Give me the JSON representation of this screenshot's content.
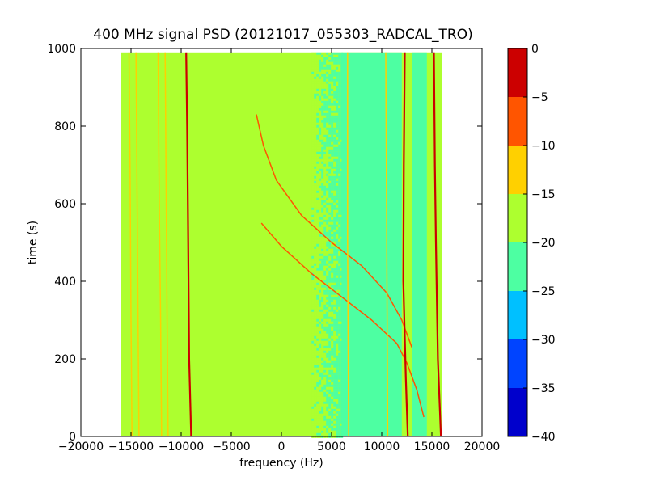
{
  "chart_data": {
    "type": "heatmap",
    "title": "400 MHz signal PSD (20121017_055303_RADCAL_TRO)",
    "xlabel": "frequency (Hz)",
    "ylabel": "time (s)",
    "xlim": [
      -20000,
      20000
    ],
    "ylim": [
      0,
      1000
    ],
    "x_ticks": [
      "−20000",
      "−15000",
      "−10000",
      "−5000",
      "0",
      "5000",
      "10000",
      "15000",
      "20000"
    ],
    "x_tick_values": [
      -20000,
      -15000,
      -10000,
      -5000,
      0,
      5000,
      10000,
      15000,
      20000
    ],
    "y_ticks": [
      "0",
      "200",
      "400",
      "600",
      "800",
      "1000"
    ],
    "y_tick_values": [
      0,
      200,
      400,
      600,
      800,
      1000
    ],
    "data_extent": {
      "x": [
        -16000,
        16000
      ],
      "y": [
        0,
        990
      ]
    },
    "background_level": -17.5,
    "regions": [
      {
        "x": [
          3000,
          6000
        ],
        "y": [
          0,
          990
        ],
        "level": "mixed -17.5/-22.5"
      },
      {
        "x": [
          6000,
          12000
        ],
        "y": [
          0,
          990
        ],
        "level": -22.5
      },
      {
        "x": [
          13000,
          14500
        ],
        "y": [
          0,
          990
        ],
        "level": -22.5
      }
    ],
    "series": [
      {
        "x": [
          -15200,
          -15100,
          -15000,
          -14900
        ],
        "y": [
          990,
          700,
          300,
          0
        ],
        "level": -12.5
      },
      {
        "x": [
          -14500,
          -14400,
          -14300,
          -14200
        ],
        "y": [
          990,
          650,
          300,
          0
        ],
        "level": -12.5
      },
      {
        "x": [
          -12300,
          -12200,
          -12050,
          -11950
        ],
        "y": [
          990,
          650,
          300,
          0
        ],
        "level": -12.5
      },
      {
        "x": [
          -11600,
          -11500,
          -11400,
          -11300
        ],
        "y": [
          990,
          650,
          300,
          0
        ],
        "level": -12.5
      },
      {
        "x": [
          -9500,
          -9400,
          -9300,
          -9200,
          -9000
        ],
        "y": [
          990,
          800,
          500,
          200,
          0
        ],
        "level": -2.5
      },
      {
        "x": [
          -2500,
          -1800,
          -500,
          2000,
          5000,
          8000,
          10500,
          12000,
          13000
        ],
        "y": [
          830,
          750,
          660,
          570,
          500,
          440,
          370,
          300,
          230
        ],
        "level": -7.5
      },
      {
        "x": [
          -2000,
          0,
          3000,
          6000,
          9000,
          11500,
          12500,
          13500,
          14200
        ],
        "y": [
          550,
          490,
          420,
          360,
          300,
          240,
          190,
          120,
          50
        ],
        "level": -7.5
      },
      {
        "x": [
          12300,
          12200,
          12150,
          12400,
          12600
        ],
        "y": [
          990,
          700,
          400,
          150,
          0
        ],
        "level": -2.5
      },
      {
        "x": [
          15200,
          15300,
          15400,
          15600,
          15900
        ],
        "y": [
          990,
          700,
          500,
          200,
          0
        ],
        "level": -2.5
      },
      {
        "x": [
          6600,
          6600,
          6700
        ],
        "y": [
          990,
          500,
          0
        ],
        "level": -12.5
      },
      {
        "x": [
          10400,
          10500,
          10600
        ],
        "y": [
          990,
          500,
          0
        ],
        "level": -12.5
      }
    ],
    "colorbar": {
      "levels": [
        -40,
        -35,
        -30,
        -25,
        -20,
        -15,
        -10,
        -5,
        0
      ],
      "ticks": [
        "0",
        "−5",
        "−10",
        "−15",
        "−20",
        "−25",
        "−30",
        "−35",
        "−40"
      ],
      "tick_values": [
        0,
        -5,
        -10,
        -15,
        -20,
        -25,
        -30,
        -35,
        -40
      ],
      "colors": [
        "#0000cc",
        "#0044ff",
        "#00c0ff",
        "#4dffa2",
        "#adff2f",
        "#ffd000",
        "#ff5500",
        "#cc0000"
      ]
    },
    "grid": false
  }
}
